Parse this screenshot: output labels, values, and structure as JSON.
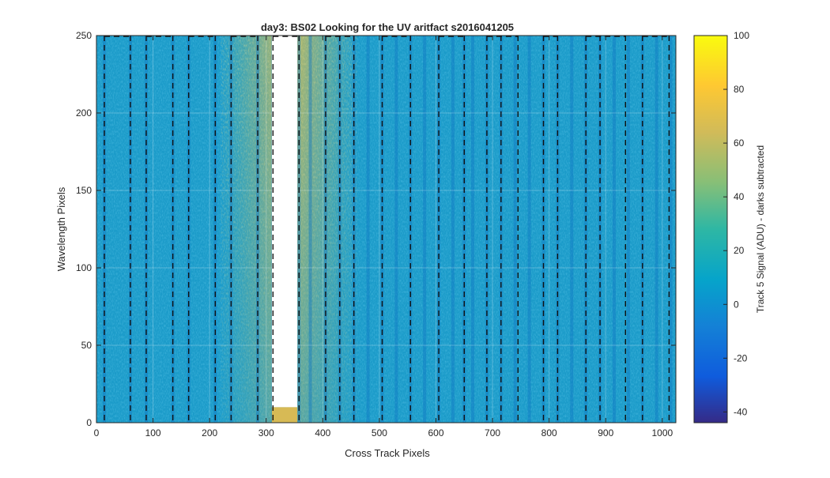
{
  "chart_data": {
    "type": "heatmap",
    "title": "day3: BS02  Looking for the UV aritfact  s2016041205",
    "xlabel": "Cross Track Pixels",
    "ylabel": "Wavelength Pixels",
    "xlim": [
      0,
      1024
    ],
    "ylim": [
      0,
      250
    ],
    "xticks": [
      0,
      100,
      200,
      300,
      400,
      500,
      600,
      700,
      800,
      900,
      1000
    ],
    "yticks": [
      0,
      50,
      100,
      150,
      200,
      250
    ],
    "colorbar": {
      "label": "Track 5 Signal (ADU) - darks subtracted",
      "range": [
        -44,
        100
      ],
      "ticks": [
        -40,
        -20,
        0,
        20,
        40,
        60,
        80,
        100
      ],
      "colormap": "parula"
    },
    "background_level_adu": 20,
    "bright_band": {
      "x_range": [
        280,
        400
      ],
      "peak_adu": 80,
      "description_free": true
    },
    "saturated_region": {
      "x_range": [
        310,
        355
      ],
      "y_range": [
        10,
        250
      ]
    },
    "stripe_x": [
      14,
      60,
      88,
      135,
      163,
      210,
      238,
      285,
      312,
      330,
      358,
      378,
      405,
      430,
      455,
      480,
      505,
      530,
      555,
      580,
      605,
      630,
      650,
      665,
      690,
      715,
      740,
      765,
      790,
      815,
      840,
      865,
      890,
      915,
      940,
      965,
      990,
      1015
    ],
    "dashed_lines": {
      "vertical_x": [
        14,
        60,
        88,
        135,
        163,
        210,
        238,
        285,
        312,
        358,
        405,
        430,
        455,
        505,
        555,
        605,
        650,
        690,
        715,
        745,
        790,
        815,
        865,
        890,
        935,
        965,
        1012
      ],
      "top_y": 250,
      "box_x": [
        312,
        356
      ],
      "top_segments": [
        [
          14,
          60
        ],
        [
          88,
          135
        ],
        [
          163,
          210
        ],
        [
          238,
          285
        ],
        [
          312,
          356
        ],
        [
          405,
          455
        ],
        [
          505,
          555
        ],
        [
          605,
          650
        ],
        [
          690,
          745
        ],
        [
          790,
          815
        ],
        [
          865,
          935
        ],
        [
          965,
          1012
        ]
      ]
    }
  }
}
